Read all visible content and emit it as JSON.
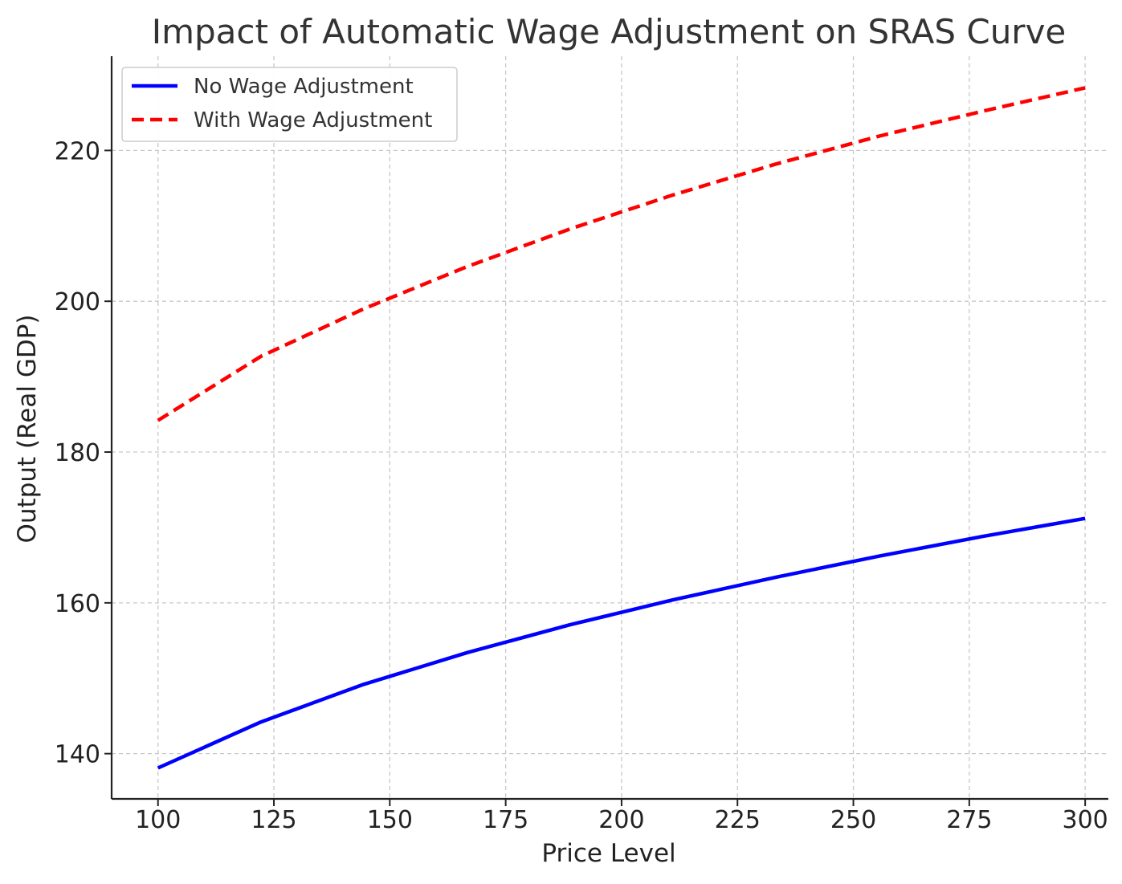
{
  "chart_data": {
    "type": "line",
    "title": "Impact of Automatic Wage Adjustment on SRAS Curve",
    "xlabel": "Price Level",
    "ylabel": "Output (Real GDP)",
    "xlim": [
      90,
      305
    ],
    "ylim": [
      134,
      232.5
    ],
    "xticks": [
      100,
      125,
      150,
      175,
      200,
      225,
      250,
      275,
      300
    ],
    "yticks": [
      140,
      160,
      180,
      200,
      220
    ],
    "x": [
      100,
      122.2,
      144.4,
      166.7,
      188.9,
      211.1,
      233.3,
      255.6,
      277.8,
      300
    ],
    "series": [
      {
        "name": "No Wage Adjustment",
        "color": "#0000ff",
        "style": "solid",
        "values": [
          138.1,
          144.2,
          149.2,
          153.4,
          157.1,
          160.4,
          163.4,
          166.2,
          168.8,
          171.2
        ]
      },
      {
        "name": "With Wage Adjustment",
        "color": "#ff0000",
        "style": "dashed",
        "values": [
          184.2,
          192.7,
          199.0,
          204.6,
          209.6,
          214.1,
          218.2,
          221.9,
          225.2,
          228.3
        ]
      }
    ],
    "grid": true,
    "legend_position": "top-left"
  }
}
